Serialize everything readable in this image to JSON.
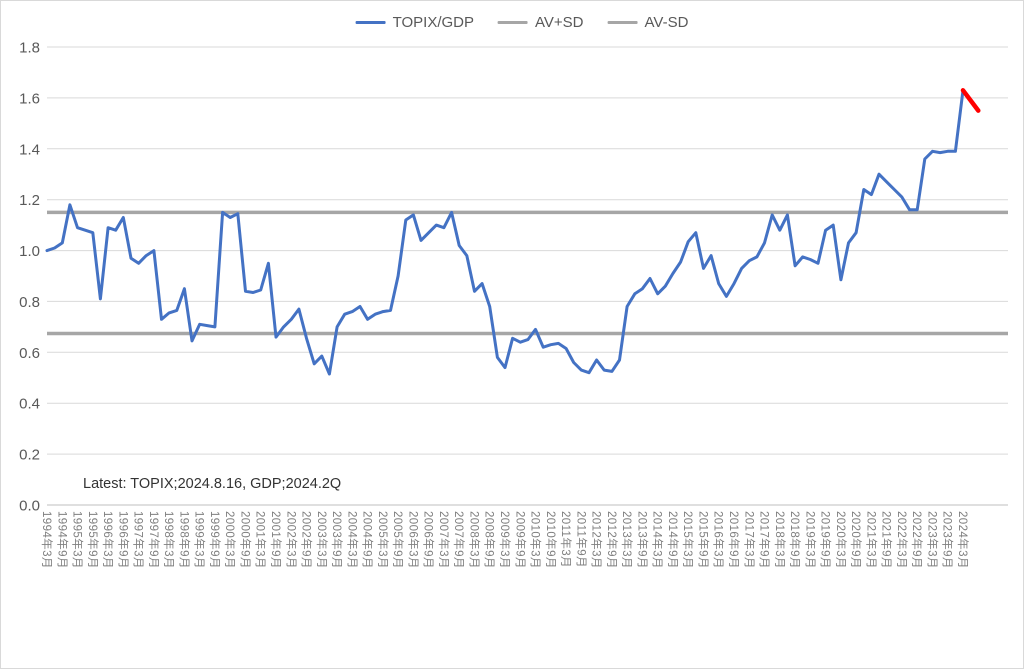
{
  "chart_data": {
    "type": "line",
    "title": "",
    "ylim": [
      0.0,
      1.8
    ],
    "y_tick_step": 0.2,
    "y_tick_labels": [
      "0.0",
      "0.2",
      "0.4",
      "0.6",
      "0.8",
      "1.0",
      "1.2",
      "1.4",
      "1.6",
      "1.8"
    ],
    "x_tick_labels": [
      "1994年3月",
      "1994年9月",
      "1995年3月",
      "1995年9月",
      "1996年3月",
      "1996年9月",
      "1997年3月",
      "1997年9月",
      "1998年3月",
      "1998年9月",
      "1999年3月",
      "1999年9月",
      "2000年3月",
      "2000年9月",
      "2001年3月",
      "2001年9月",
      "2002年3月",
      "2002年9月",
      "2003年3月",
      "2003年9月",
      "2004年3月",
      "2004年9月",
      "2005年3月",
      "2005年9月",
      "2006年3月",
      "2006年9月",
      "2007年3月",
      "2007年9月",
      "2008年3月",
      "2008年9月",
      "2009年3月",
      "2009年9月",
      "2010年3月",
      "2010年9月",
      "2011年3月",
      "2011年9月",
      "2012年3月",
      "2012年9月",
      "2013年3月",
      "2013年9月",
      "2014年3月",
      "2014年9月",
      "2015年3月",
      "2015年9月",
      "2016年3月",
      "2016年9月",
      "2017年3月",
      "2017年9月",
      "2018年3月",
      "2018年9月",
      "2019年3月",
      "2019年9月",
      "2020年3月",
      "2020年9月",
      "2021年3月",
      "2021年9月",
      "2022年3月",
      "2022年9月",
      "2023年3月",
      "2023年9月",
      "2024年3月"
    ],
    "legend": {
      "items": [
        {
          "label": "TOPIX/GDP",
          "color": "#4472C4"
        },
        {
          "label": "AV+SD",
          "color": "#A6A6A6"
        },
        {
          "label": "AV-SD",
          "color": "#A6A6A6"
        }
      ],
      "position": "top-center"
    },
    "series": [
      {
        "name": "TOPIX/GDP",
        "color": "#4472C4",
        "start_period": "1994Q1",
        "frequency": "quarterly",
        "values": [
          1.0,
          1.01,
          1.03,
          1.18,
          1.09,
          1.08,
          1.07,
          0.81,
          1.09,
          1.08,
          1.13,
          0.97,
          0.95,
          0.98,
          1.0,
          0.73,
          0.755,
          0.765,
          0.85,
          0.645,
          0.71,
          0.705,
          0.7,
          1.15,
          1.13,
          1.145,
          0.84,
          0.835,
          0.845,
          0.95,
          0.66,
          0.7,
          0.73,
          0.77,
          0.655,
          0.555,
          0.585,
          0.515,
          0.7,
          0.75,
          0.76,
          0.78,
          0.73,
          0.75,
          0.76,
          0.765,
          0.9,
          1.12,
          1.14,
          1.04,
          1.07,
          1.1,
          1.09,
          1.15,
          1.02,
          0.98,
          0.84,
          0.87,
          0.78,
          0.58,
          0.54,
          0.655,
          0.64,
          0.65,
          0.69,
          0.62,
          0.63,
          0.635,
          0.615,
          0.56,
          0.53,
          0.52,
          0.57,
          0.53,
          0.525,
          0.57,
          0.78,
          0.83,
          0.85,
          0.89,
          0.83,
          0.86,
          0.91,
          0.955,
          1.035,
          1.07,
          0.93,
          0.98,
          0.87,
          0.82,
          0.87,
          0.93,
          0.96,
          0.975,
          1.03,
          1.14,
          1.08,
          1.14,
          0.94,
          0.975,
          0.965,
          0.95,
          1.08,
          1.1,
          0.885,
          1.03,
          1.07,
          1.24,
          1.22,
          1.3,
          1.27,
          1.24,
          1.21,
          1.16,
          1.16,
          1.36,
          1.39,
          1.385,
          1.39,
          1.39,
          1.63
        ]
      }
    ],
    "latest_segment": {
      "name": "latest (red tip)",
      "color": "#FF0000",
      "from_quarter_index": 120,
      "quarters_span": 2,
      "values": [
        1.63,
        1.55
      ]
    },
    "reference_lines": [
      {
        "name": "AV+SD",
        "value": 1.15,
        "color": "#A6A6A6"
      },
      {
        "name": "AV-SD",
        "value": 0.674,
        "color": "#A6A6A6"
      }
    ],
    "grid": {
      "horizontal": true,
      "vertical": false,
      "color": "#D9D9D9",
      "baseline_color": "#BFBFBF"
    },
    "annotation": "Latest: TOPIX;2024.8.16, GDP;2024.2Q",
    "axis_text_color": "#7F7F7F",
    "y_axis_text_color": "#595959"
  }
}
